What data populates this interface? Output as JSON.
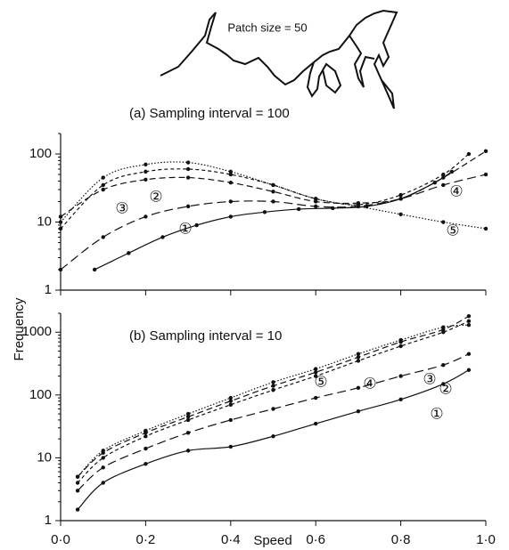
{
  "figure": {
    "inset_label": "Patch size = 50",
    "ylabel": "Frequency",
    "xlabel": "Speed"
  },
  "chart_data": [
    {
      "type": "line",
      "title": "(a) Sampling interval = 100",
      "log_y": true,
      "xlim": [
        0,
        1
      ],
      "xticks": [
        0,
        0.2,
        0.4,
        0.6,
        0.8,
        1
      ],
      "ylim": [
        1,
        200
      ],
      "yticks": [
        1,
        10,
        100
      ],
      "series": [
        {
          "name": "①",
          "color": "#111",
          "style": "solid",
          "x": [
            0.08,
            0.16,
            0.24,
            0.32,
            0.4,
            0.48,
            0.56,
            0.64,
            0.72,
            0.8,
            0.88,
            0.92
          ],
          "values": [
            2,
            3.5,
            6,
            9,
            12,
            14,
            15.5,
            16,
            17,
            22,
            38,
            55
          ]
        },
        {
          "name": "②",
          "color": "#111",
          "style": "longdash",
          "x": [
            0,
            0.1,
            0.2,
            0.3,
            0.4,
            0.5,
            0.6,
            0.7,
            0.8,
            0.9,
            1
          ],
          "values": [
            2,
            6,
            12,
            17,
            20,
            20,
            17,
            17,
            22,
            35,
            50
          ]
        },
        {
          "name": "③",
          "color": "#111",
          "style": "dash",
          "x": [
            0,
            0.1,
            0.2,
            0.3,
            0.4,
            0.5,
            0.6,
            0.7,
            0.8,
            0.9,
            0.96
          ],
          "values": [
            8,
            35,
            55,
            60,
            50,
            35,
            22,
            18,
            25,
            50,
            100
          ]
        },
        {
          "name": "④",
          "color": "#111",
          "style": "mediumdash",
          "x": [
            0,
            0.1,
            0.2,
            0.3,
            0.4,
            0.5,
            0.6,
            0.7,
            0.8,
            0.9,
            1
          ],
          "values": [
            12,
            30,
            42,
            45,
            38,
            28,
            20,
            19,
            22,
            45,
            110
          ]
        },
        {
          "name": "⑤",
          "color": "#111",
          "style": "dotted",
          "x": [
            0,
            0.1,
            0.2,
            0.3,
            0.4,
            0.5,
            0.6,
            0.7,
            0.8,
            0.9,
            1
          ],
          "values": [
            10,
            45,
            70,
            75,
            55,
            35,
            22,
            17,
            13,
            10,
            8
          ]
        }
      ]
    },
    {
      "type": "line",
      "title": "(b) Sampling interval = 10",
      "log_y": true,
      "xlim": [
        0,
        1
      ],
      "xticks": [
        {
          "value": 0,
          "label": "0·0"
        },
        {
          "value": 0.2,
          "label": "0·2"
        },
        {
          "value": 0.4,
          "label": "0·4"
        },
        {
          "value": 0.6,
          "label": "0·6"
        },
        {
          "value": 0.8,
          "label": "0·8"
        },
        {
          "value": 1,
          "label": "1·0"
        }
      ],
      "ylim": [
        1,
        2000
      ],
      "yticks": [
        1,
        10,
        100,
        1000
      ],
      "series": [
        {
          "name": "①",
          "color": "#111",
          "style": "solid",
          "x": [
            0.04,
            0.1,
            0.2,
            0.3,
            0.4,
            0.5,
            0.6,
            0.7,
            0.8,
            0.9,
            0.96
          ],
          "values": [
            1.5,
            4,
            8,
            13,
            15,
            22,
            35,
            55,
            85,
            150,
            250
          ]
        },
        {
          "name": "②",
          "color": "#111",
          "style": "longdash",
          "x": [
            0.04,
            0.1,
            0.2,
            0.3,
            0.4,
            0.5,
            0.6,
            0.7,
            0.8,
            0.9,
            0.96
          ],
          "values": [
            3,
            7,
            14,
            25,
            40,
            60,
            90,
            130,
            200,
            300,
            450
          ]
        },
        {
          "name": "③",
          "color": "#111",
          "style": "dash",
          "x": [
            0.04,
            0.1,
            0.2,
            0.3,
            0.4,
            0.5,
            0.6,
            0.7,
            0.8,
            0.9,
            0.96
          ],
          "values": [
            4,
            10,
            22,
            40,
            70,
            120,
            200,
            350,
            600,
            1000,
            1500
          ]
        },
        {
          "name": "④",
          "color": "#111",
          "style": "mediumdash",
          "x": [
            0.04,
            0.1,
            0.2,
            0.3,
            0.4,
            0.5,
            0.6,
            0.7,
            0.8,
            0.9,
            0.96
          ],
          "values": [
            5,
            12,
            25,
            45,
            80,
            140,
            230,
            400,
            700,
            1100,
            1800
          ]
        },
        {
          "name": "⑤",
          "color": "#111",
          "style": "dotted",
          "x": [
            0.04,
            0.1,
            0.2,
            0.3,
            0.4,
            0.5,
            0.6,
            0.7,
            0.8,
            0.9,
            0.96
          ],
          "values": [
            5,
            13,
            27,
            50,
            90,
            160,
            260,
            450,
            750,
            1200,
            1300
          ]
        }
      ]
    }
  ]
}
